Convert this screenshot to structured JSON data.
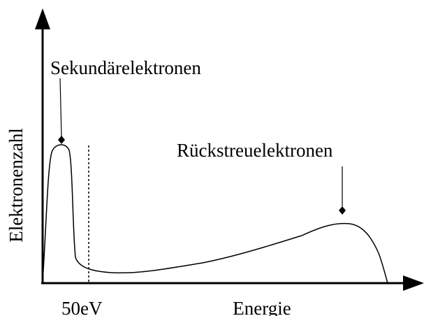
{
  "secondary_label": "Sekundärelektronen",
  "backscatter_label": "Rückstreuelektronen",
  "y_axis_label": "Elektronenzahl",
  "x_axis_label": "Energie",
  "threshold_label": "50eV"
}
